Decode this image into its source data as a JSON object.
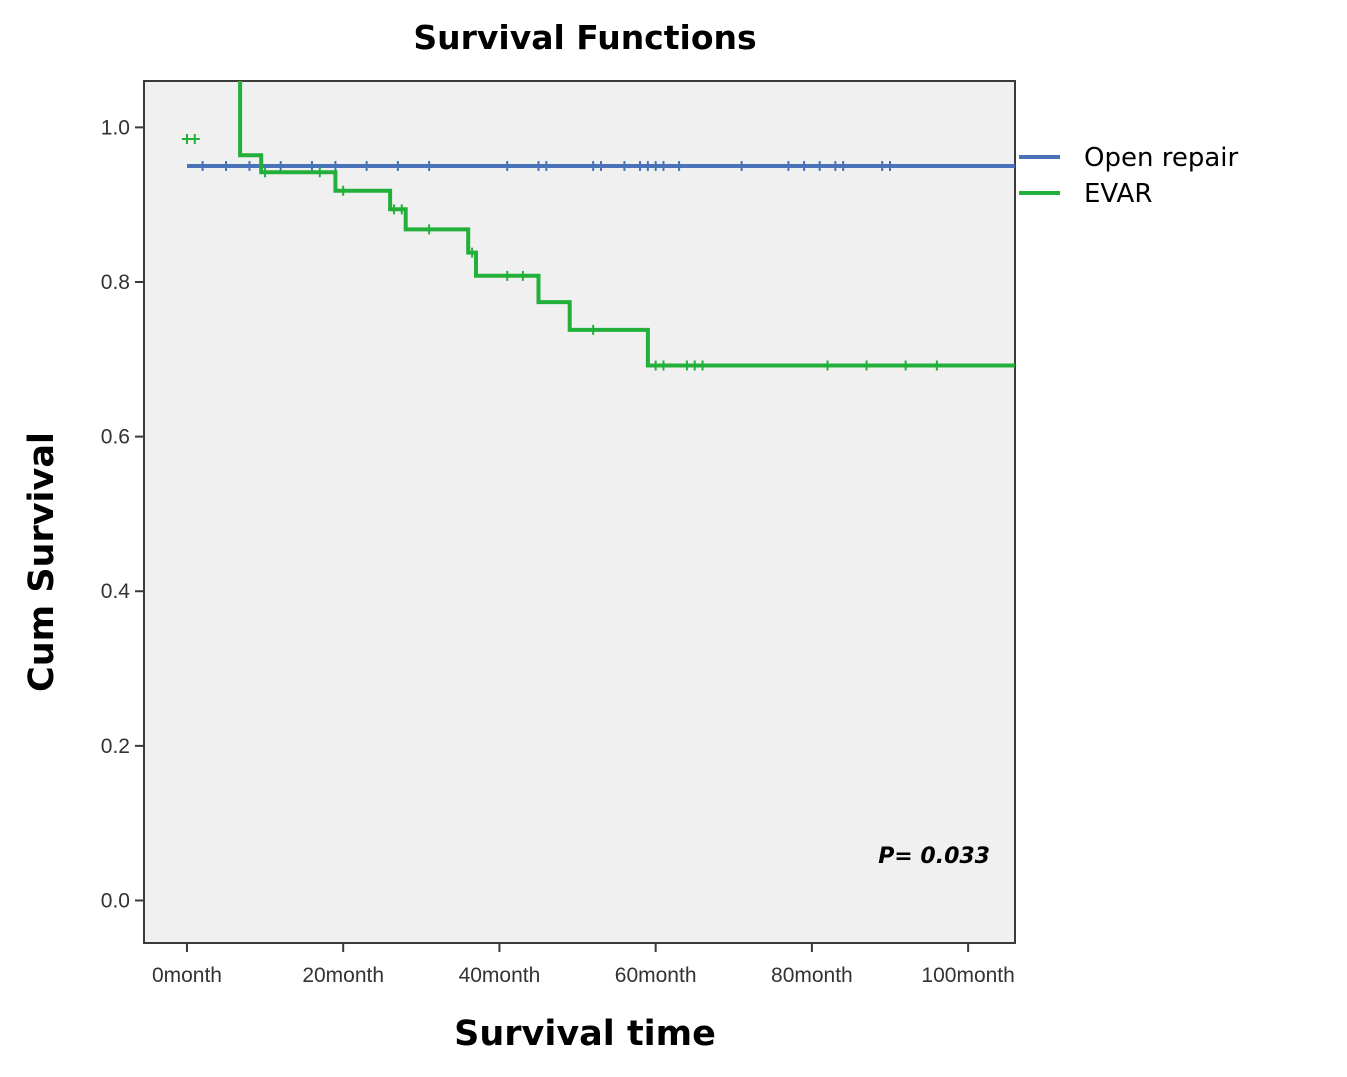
{
  "chart_data": {
    "type": "line",
    "subtype": "kaplan-meier",
    "title": "Survival Functions",
    "xlabel": "Survival time",
    "ylabel": "Cum Survival",
    "xlim": [
      -5.5,
      106
    ],
    "ylim": [
      -0.055,
      1.06
    ],
    "x_ticks": [
      0,
      20,
      40,
      60,
      80,
      100
    ],
    "x_tick_labels": [
      "0month",
      "20month",
      "40month",
      "60month",
      "80month",
      "100month"
    ],
    "y_ticks": [
      0.0,
      0.2,
      0.4,
      0.6,
      0.8,
      1.0
    ],
    "y_tick_labels": [
      "0.0",
      "0.2",
      "0.4",
      "0.6",
      "0.8",
      "1.0"
    ],
    "grid": false,
    "legend_position": "right-top",
    "annotation": "P= 0.033",
    "series": [
      {
        "name": "Open repair",
        "color": "#4a72b8",
        "steps": [
          [
            0,
            0.95
          ],
          [
            106,
            0.95
          ]
        ],
        "censored": [
          [
            2,
            0.95
          ],
          [
            5,
            0.95
          ],
          [
            8,
            0.95
          ],
          [
            12,
            0.95
          ],
          [
            16,
            0.95
          ],
          [
            19,
            0.95
          ],
          [
            23,
            0.95
          ],
          [
            27,
            0.95
          ],
          [
            31,
            0.95
          ],
          [
            41,
            0.95
          ],
          [
            45,
            0.95
          ],
          [
            46,
            0.95
          ],
          [
            52,
            0.95
          ],
          [
            53,
            0.95
          ],
          [
            56,
            0.95
          ],
          [
            58,
            0.95
          ],
          [
            59,
            0.95
          ],
          [
            60,
            0.95
          ],
          [
            61,
            0.95
          ],
          [
            63,
            0.95
          ],
          [
            71,
            0.95
          ],
          [
            77,
            0.95
          ],
          [
            79,
            0.95
          ],
          [
            81,
            0.95
          ],
          [
            83,
            0.95
          ],
          [
            84,
            0.95
          ],
          [
            89,
            0.95
          ],
          [
            90,
            0.95
          ]
        ]
      },
      {
        "name": "EVAR",
        "color": "#22b03a",
        "steps": [
          [
            6.8,
            1.06
          ],
          [
            6.8,
            0.964
          ],
          [
            9.5,
            0.964
          ],
          [
            9.5,
            0.942
          ],
          [
            19,
            0.942
          ],
          [
            19,
            0.918
          ],
          [
            26,
            0.918
          ],
          [
            26,
            0.894
          ],
          [
            28,
            0.894
          ],
          [
            28,
            0.868
          ],
          [
            36,
            0.868
          ],
          [
            36,
            0.838
          ],
          [
            37,
            0.838
          ],
          [
            37,
            0.808
          ],
          [
            45,
            0.808
          ],
          [
            45,
            0.774
          ],
          [
            49,
            0.774
          ],
          [
            49,
            0.738
          ],
          [
            59,
            0.738
          ],
          [
            59,
            0.692
          ],
          [
            106,
            0.692
          ]
        ],
        "censored": [
          [
            0,
            0.985
          ],
          [
            1,
            0.985
          ],
          [
            10,
            0.942
          ],
          [
            17,
            0.942
          ],
          [
            20,
            0.918
          ],
          [
            26.5,
            0.894
          ],
          [
            27.5,
            0.894
          ],
          [
            31,
            0.868
          ],
          [
            36.5,
            0.838
          ],
          [
            41,
            0.808
          ],
          [
            43,
            0.808
          ],
          [
            52,
            0.738
          ],
          [
            60,
            0.692
          ],
          [
            61,
            0.692
          ],
          [
            64,
            0.692
          ],
          [
            65,
            0.692
          ],
          [
            66,
            0.692
          ],
          [
            82,
            0.692
          ],
          [
            87,
            0.692
          ],
          [
            92,
            0.692
          ],
          [
            96,
            0.692
          ]
        ]
      }
    ]
  }
}
